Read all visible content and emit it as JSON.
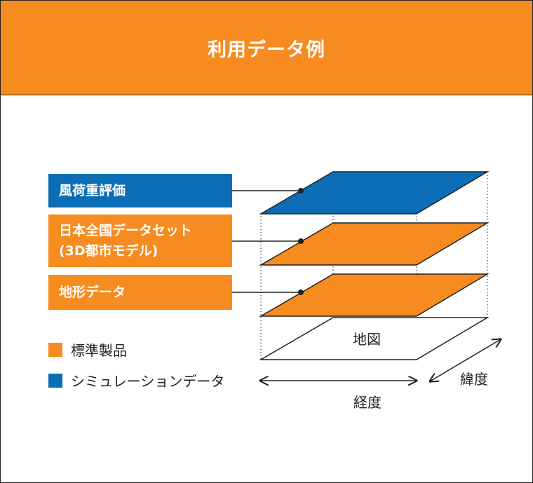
{
  "title": "利用データ例",
  "labels": {
    "wind": "風荷重評価",
    "plateau_line1": "日本全国データセット",
    "plateau_line2": "(3D都市モデル)",
    "terrain": "地形データ"
  },
  "legend": [
    {
      "label": "標準製品",
      "color": "#f68b1f"
    },
    {
      "label": "シミュレーションデータ",
      "color": "#0b6db5"
    }
  ],
  "map_label": "地図",
  "axis": {
    "longitude": "経度",
    "latitude": "緯度"
  },
  "colors": {
    "orange": "#f68b1f",
    "blue": "#0b6db5"
  }
}
